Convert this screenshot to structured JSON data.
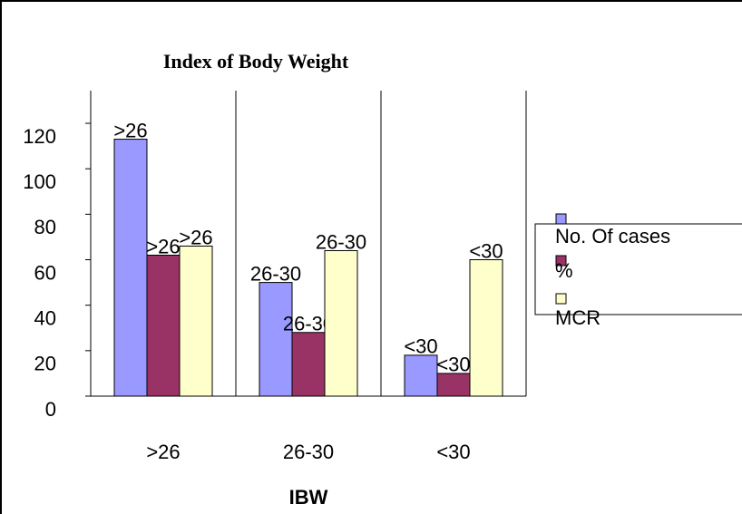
{
  "chart_data": {
    "type": "bar",
    "title": "Index of Body Weight",
    "x_label": "IBW",
    "categories": [
      ">26",
      "26-30",
      "<30"
    ],
    "series": [
      {
        "name": "No. Of cases",
        "color": "#9999ff",
        "values": [
          113,
          50,
          18
        ]
      },
      {
        "name": "%",
        "color": "#993366",
        "values": [
          62,
          28,
          10
        ]
      },
      {
        "name": "MCR",
        "color": "#ffffcc",
        "values": [
          66,
          64,
          60
        ]
      }
    ],
    "ylim": [
      0,
      120
    ],
    "yticks": [
      0,
      20,
      40,
      60,
      80,
      100,
      120
    ],
    "legend": "right"
  }
}
